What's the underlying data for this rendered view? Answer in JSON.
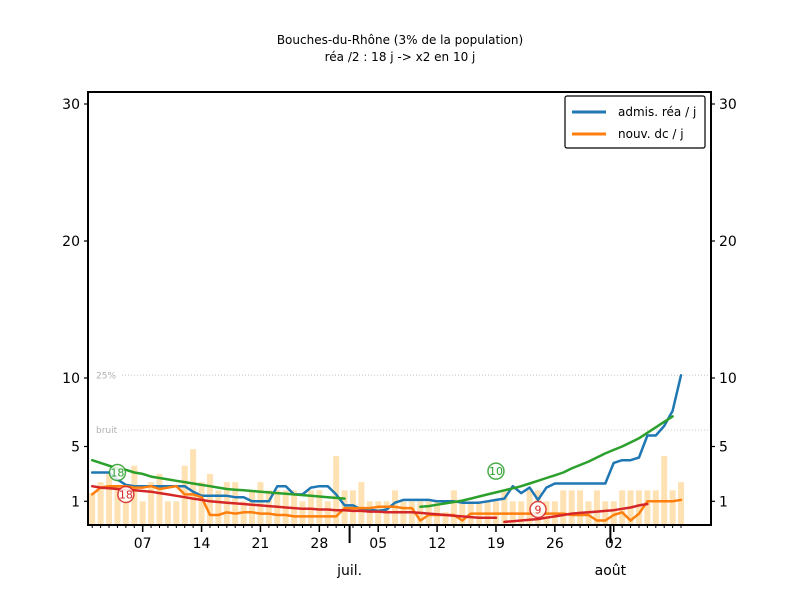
{
  "chart_data": {
    "type": "line",
    "title": "Bouches-du-Rhône (3% de la population)",
    "subtitle": "réa /2 : 18 j -> x2 en 10 j",
    "ylim": [
      0,
      32
    ],
    "y_ticks": [
      1,
      5,
      10,
      20,
      30
    ],
    "y_tick_labels": [
      "1",
      "5",
      "10",
      "20",
      "30"
    ],
    "x_tick_labels": [
      "07",
      "14",
      "21",
      "28",
      "05",
      "12",
      "19",
      "26",
      "02"
    ],
    "x_month_labels": [
      "juil.",
      "août"
    ],
    "thresholds": [
      {
        "label": "25%",
        "value": 10.2
      },
      {
        "label": "bruit",
        "value": 6.2
      }
    ],
    "legend": {
      "position": "top-right",
      "entries": [
        "admis. réa / j",
        "nouv. dc / j"
      ]
    },
    "colors": {
      "adm": "#1f77b4",
      "dc": "#ff7f0e",
      "trend_adm": "#2ca02c",
      "trend_dc": "#d62728",
      "bars": "#ffe2b3"
    },
    "annotations": [
      {
        "label": "18",
        "color": "#2ca02c",
        "day": 4,
        "y": 3.1
      },
      {
        "label": "18",
        "color": "#d62728",
        "day": 5,
        "y": 1.5
      },
      {
        "label": "10",
        "color": "#2ca02c",
        "day": 49,
        "y": 3.2
      },
      {
        "label": "9",
        "color": "#d62728",
        "day": 54,
        "y": 0.4
      }
    ],
    "series": [
      {
        "name": "admis. réa / j",
        "color": "#1f77b4",
        "start_day": 1,
        "values": [
          3.1,
          3.1,
          3.1,
          2.6,
          2.2,
          2.1,
          2.1,
          2.1,
          2.1,
          2.1,
          2.1,
          2.1,
          1.7,
          1.4,
          1.4,
          1.4,
          1.4,
          1.3,
          1.3,
          1.0,
          1.0,
          1.0,
          2.1,
          2.1,
          1.5,
          1.5,
          2.0,
          2.1,
          2.1,
          1.5,
          0.7,
          0.7,
          0.4,
          0.4,
          0.3,
          0.4,
          0.9,
          1.1,
          1.1,
          1.1,
          1.1,
          1.0,
          1.0,
          1.0,
          0.9,
          0.9,
          0.9,
          1.0,
          1.1,
          1.2,
          2.1,
          1.6,
          2.0,
          1.1,
          2.0,
          2.3,
          2.3,
          2.3,
          2.3,
          2.3,
          2.3,
          2.3,
          3.8,
          4.0,
          4.0,
          4.2,
          5.8,
          5.8,
          6.5,
          7.6,
          10.2
        ]
      },
      {
        "name": "nouv. dc / j",
        "color": "#ff7f0e",
        "start_day": 1,
        "values": [
          1.5,
          2.0,
          2.1,
          2.1,
          2.1,
          2.0,
          2.0,
          2.1,
          1.9,
          2.0,
          2.1,
          1.5,
          1.5,
          1.3,
          0.0,
          0.0,
          0.2,
          0.1,
          0.2,
          0.2,
          0.1,
          0.1,
          0.0,
          0.0,
          -0.1,
          -0.1,
          -0.1,
          -0.1,
          -0.1,
          -0.1,
          0.5,
          0.5,
          0.5,
          0.5,
          0.6,
          0.6,
          0.6,
          0.5,
          0.5,
          -0.4,
          0.0,
          0.0,
          0.0,
          0.0,
          -0.4,
          0.1,
          0.1,
          0.1,
          0.1,
          0.1,
          0.1,
          0.1,
          0.1,
          0.1,
          0.1,
          0.1,
          0.1,
          0.0,
          0.0,
          0.0,
          -0.4,
          -0.4,
          0.0,
          0.2,
          -0.4,
          0.1,
          1.0,
          1.0,
          1.0,
          1.0,
          1.1
        ]
      },
      {
        "name": "",
        "color": "#2ca02c",
        "start_day": 1,
        "values": [
          4.0,
          3.8,
          3.6,
          3.4,
          3.3,
          3.1,
          3.0,
          2.8,
          2.7,
          2.6,
          2.5,
          2.4,
          2.3,
          2.2,
          2.1,
          2.0,
          1.9,
          1.85,
          1.8,
          1.75,
          1.7,
          1.65,
          1.6,
          1.55,
          1.5,
          1.45,
          1.4,
          1.35,
          1.3,
          1.25,
          1.2
        ]
      },
      {
        "name": "",
        "color": "#2ca02c",
        "start_day": 40,
        "values": [
          0.6,
          0.65,
          0.75,
          0.85,
          0.95,
          1.05,
          1.2,
          1.35,
          1.5,
          1.65,
          1.8,
          1.95,
          2.1,
          2.3,
          2.5,
          2.7,
          2.9,
          3.1,
          3.4,
          3.65,
          3.9,
          4.2,
          4.5,
          4.75,
          5.0,
          5.3,
          5.6,
          6.0,
          6.4,
          6.8,
          7.2
        ]
      },
      {
        "name": "",
        "color": "#d62728",
        "start_day": 1,
        "values": [
          2.1,
          2.0,
          1.95,
          1.9,
          1.85,
          1.8,
          1.75,
          1.7,
          1.6,
          1.5,
          1.4,
          1.3,
          1.2,
          1.1,
          1.0,
          0.95,
          0.9,
          0.85,
          0.8,
          0.75,
          0.7,
          0.65,
          0.6,
          0.55,
          0.5,
          0.45,
          0.45,
          0.4,
          0.4,
          0.35,
          0.35,
          0.3,
          0.3,
          0.25,
          0.25,
          0.2,
          0.2,
          0.2,
          0.2,
          0.15,
          0.1,
          0.05,
          0.0,
          -0.05,
          -0.1,
          -0.15,
          -0.2,
          -0.2,
          -0.2
        ]
      },
      {
        "name": "",
        "color": "#d62728",
        "start_day": 50,
        "values": [
          -0.5,
          -0.45,
          -0.4,
          -0.35,
          -0.3,
          -0.2,
          -0.1,
          0.0,
          0.1,
          0.15,
          0.2,
          0.25,
          0.3,
          0.35,
          0.45,
          0.55,
          0.7,
          0.8
        ]
      }
    ],
    "bars": {
      "color": "#ffe2b3",
      "start_day": 1,
      "values": [
        1.6,
        2.4,
        3.0,
        2.2,
        1.8,
        3.6,
        1.0,
        2.4,
        3.0,
        1.0,
        1.0,
        3.6,
        4.8,
        2.4,
        3.0,
        1.8,
        2.4,
        2.4,
        1.0,
        1.8,
        2.4,
        1.8,
        1.8,
        1.8,
        1.8,
        1.0,
        1.8,
        1.8,
        1.0,
        4.3,
        1.8,
        1.8,
        2.4,
        1.0,
        1.0,
        1.0,
        1.8,
        1.0,
        1.0,
        1.0,
        1.0,
        1.0,
        0.2,
        1.8,
        1.0,
        1.0,
        1.0,
        1.0,
        1.0,
        1.8,
        1.0,
        1.0,
        1.8,
        1.8,
        1.0,
        1.0,
        1.8,
        1.8,
        1.8,
        1.0,
        1.8,
        1.0,
        1.0,
        1.8,
        1.8,
        1.8,
        1.8,
        1.8,
        4.3,
        1.8,
        2.4
      ]
    }
  }
}
